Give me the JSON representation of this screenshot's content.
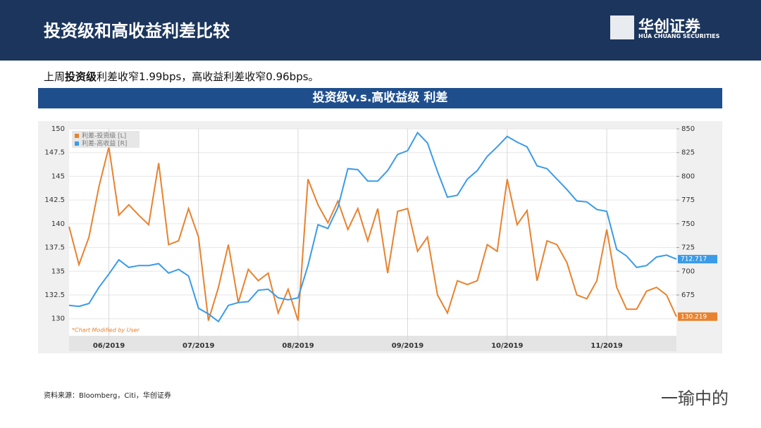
{
  "header": {
    "title": "投资级和高收益利差比较",
    "logo": "华创证券",
    "logo_sub": "HUA CHUANG SECURITIES"
  },
  "summary": [
    "上周",
    "投资级",
    "利差收窄1.99bps，高收益利差收窄0.96bps。"
  ],
  "source": "资料来源：Bloomberg，Citi，华创证券",
  "watermark": "一瑜中的",
  "chart_data": {
    "type": "line",
    "title": "投资级v.s.高收益级 利差",
    "annotation": "*Chart Modified by User",
    "categories": [
      null,
      null,
      null,
      null,
      "06/2019",
      null,
      null,
      null,
      null,
      null,
      null,
      null,
      null,
      "07/2019",
      null,
      null,
      null,
      null,
      null,
      null,
      null,
      null,
      null,
      "08/2019",
      null,
      null,
      null,
      null,
      null,
      null,
      null,
      null,
      null,
      null,
      "09/2019",
      null,
      null,
      null,
      null,
      null,
      null,
      null,
      null,
      null,
      "10/2019",
      null,
      null,
      null,
      null,
      null,
      null,
      null,
      null,
      null,
      "11/2019",
      null,
      null,
      null,
      null,
      null,
      null,
      null
    ],
    "series": [
      {
        "name": "利差-投资级 [L]",
        "color": "#e8822e",
        "values": [
          139.7,
          135.7,
          138.6,
          143.9,
          148.1,
          140.9,
          142.0,
          140.9,
          139.9,
          146.4,
          137.8,
          138.2,
          141.6,
          138.6,
          129.8,
          133.3,
          137.8,
          131.7,
          135.2,
          134.0,
          134.8,
          130.6,
          133.1,
          129.8,
          144.7,
          142.0,
          140.1,
          142.4,
          139.4,
          141.6,
          138.2,
          141.6,
          134.8,
          141.3,
          141.6,
          137.1,
          138.6,
          132.5,
          130.6,
          134.0,
          133.6,
          134.0,
          137.8,
          137.1,
          144.7,
          139.9,
          141.4,
          134.0,
          138.2,
          137.8,
          135.9,
          132.5,
          132.1,
          134.0,
          139.4,
          133.3,
          131.0,
          131.0,
          132.9,
          133.3,
          132.5,
          130.219
        ]
      },
      {
        "name": "利差-高收益 [R]",
        "color": "#3a9be8",
        "axis": "y2",
        "values": [
          664,
          663,
          666,
          683,
          697,
          712,
          704,
          706,
          706,
          708,
          698,
          702,
          695,
          661,
          655,
          647,
          664,
          667,
          668,
          680,
          681,
          672,
          670,
          672,
          706,
          749,
          745,
          767,
          808,
          807,
          795,
          795,
          806,
          823,
          827,
          846,
          835,
          805,
          778,
          780,
          797,
          806,
          821,
          831,
          842,
          836,
          831,
          811,
          808,
          797,
          786,
          774,
          773,
          765,
          763,
          723,
          716,
          704,
          706,
          715,
          717,
          712.717
        ]
      }
    ],
    "ylim": [
      128.2,
      150
    ],
    "yticks": [
      130,
      132.5,
      135,
      137.5,
      140,
      142.5,
      145,
      147.5,
      150
    ],
    "y2lim": [
      632,
      850
    ],
    "y2ticks": [
      675,
      700,
      725,
      750,
      775,
      800,
      825,
      850
    ],
    "grid": true,
    "legend": "top-left"
  }
}
